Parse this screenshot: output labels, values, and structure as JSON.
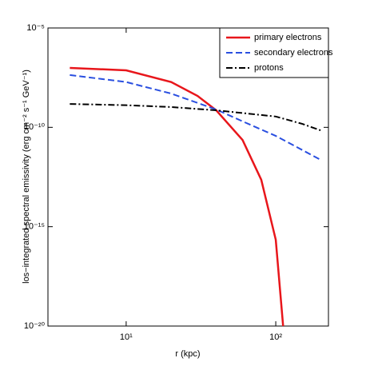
{
  "chart_data": {
    "type": "line",
    "xlabel": "r (kpc)",
    "ylabel": "los−integrated spectral emissivity (erg cm⁻² s⁻¹ GeV⁻¹)",
    "xlog": true,
    "ylog": true,
    "xlim": [
      3,
      225
    ],
    "ylim": [
      1e-20,
      1e-05
    ],
    "xticks": [
      {
        "value": 10,
        "label": "10¹"
      },
      {
        "value": 100,
        "label": "10²"
      }
    ],
    "yticks": [
      {
        "value": 1e-20,
        "label": "10⁻²⁰"
      },
      {
        "value": 1e-15,
        "label": "10⁻¹⁵"
      },
      {
        "value": 1e-10,
        "label": "10⁻¹⁰"
      },
      {
        "value": 1e-05,
        "label": "10⁻⁵"
      }
    ],
    "legend": "upper right",
    "series": [
      {
        "name": "primary electrons",
        "color": "#e8161b",
        "linestyle": "solid",
        "x": [
          4.2,
          10,
          20,
          30,
          40,
          60,
          80,
          100,
          112
        ],
        "values": [
          9.8e-08,
          7.4e-08,
          1.9e-08,
          3.8e-09,
          7.2e-10,
          2.3e-11,
          2.3e-13,
          2.2e-16,
          1e-20
        ]
      },
      {
        "name": "secondary electrons",
        "color": "#2a4fe0",
        "linestyle": "dashed",
        "x": [
          4.2,
          10,
          20,
          40,
          60,
          100,
          200
        ],
        "values": [
          4.3e-08,
          1.9e-08,
          5e-09,
          7.9e-10,
          2e-10,
          3.7e-11,
          2.3e-12
        ]
      },
      {
        "name": "protons",
        "color": "#000000",
        "linestyle": "dashdot",
        "x": [
          4.2,
          10,
          20,
          40,
          100,
          150,
          200
        ],
        "values": [
          1.5e-09,
          1.3e-09,
          1.05e-09,
          7.2e-10,
          3.5e-10,
          1.5e-10,
          7e-11
        ]
      }
    ]
  }
}
